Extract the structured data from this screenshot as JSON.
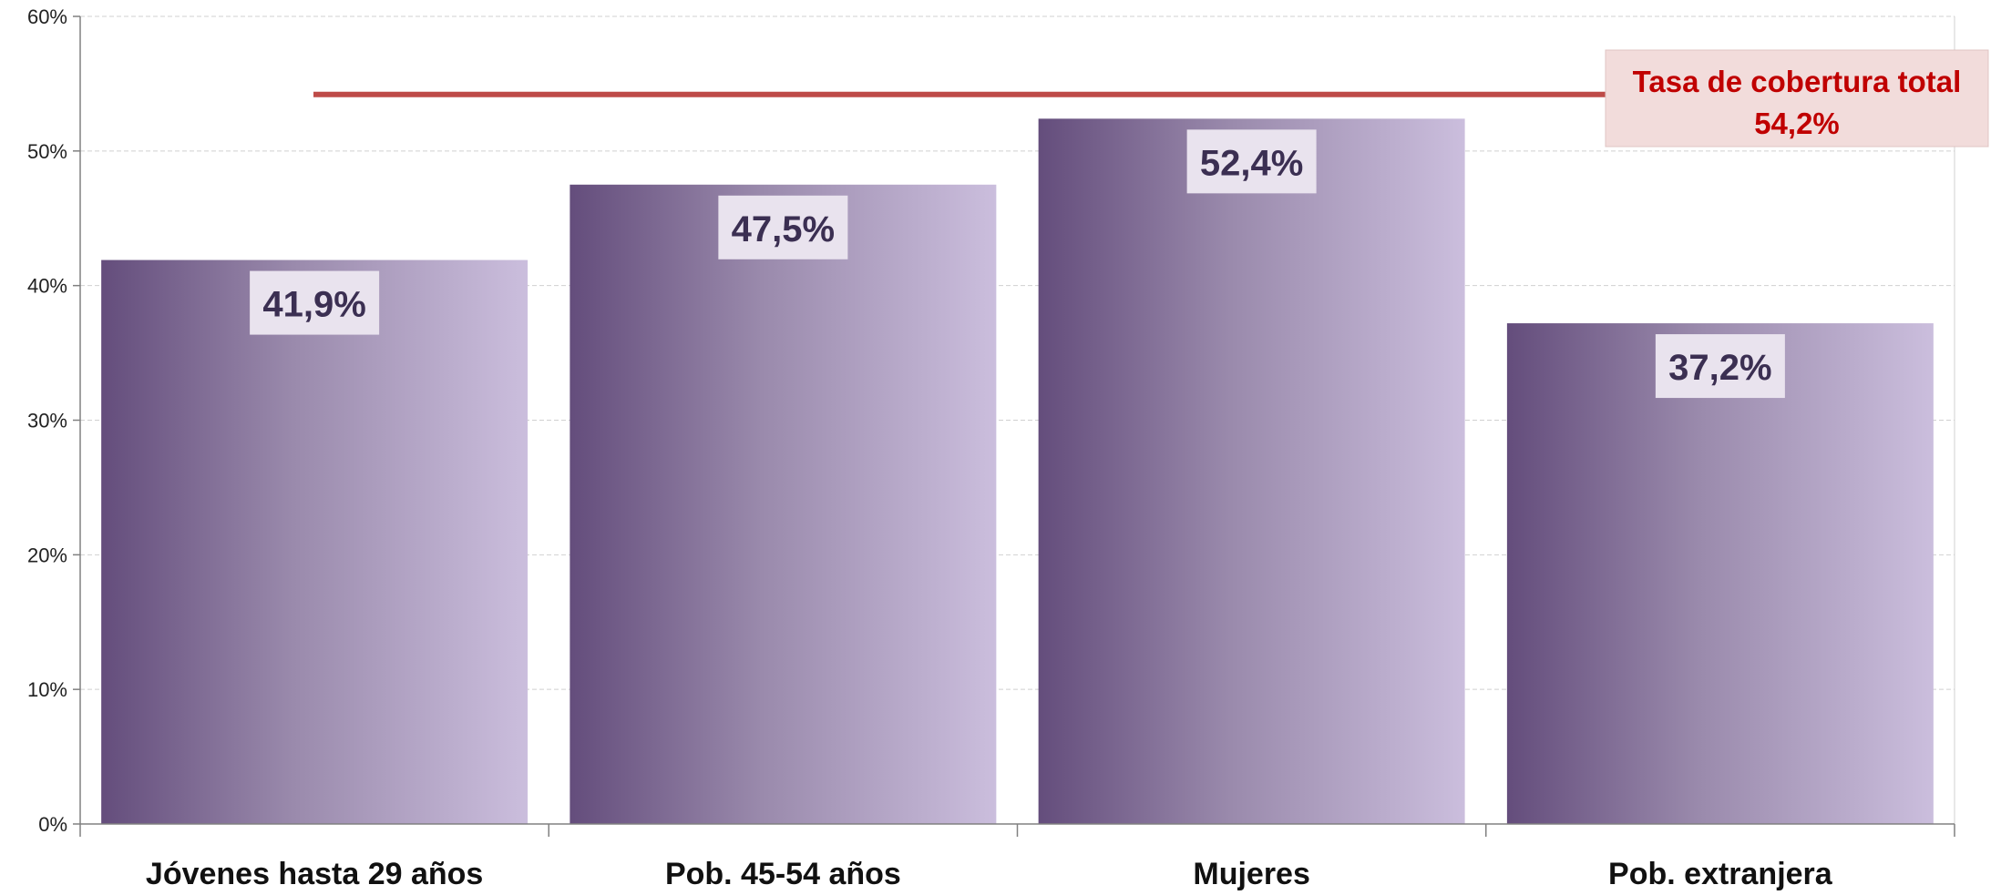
{
  "chart_data": {
    "type": "bar",
    "categories": [
      "Jóvenes hasta 29 años",
      "Pob. 45-54 años",
      "Mujeres",
      "Pob. extranjera"
    ],
    "values": [
      41.9,
      47.5,
      52.4,
      37.2
    ],
    "value_labels": [
      "41,9%",
      "47,5%",
      "52,4%",
      "37,2%"
    ],
    "ylim": [
      0,
      60
    ],
    "yticks": [
      0,
      10,
      20,
      30,
      40,
      50,
      60
    ],
    "ytick_labels": [
      "0%",
      "10%",
      "20%",
      "30%",
      "40%",
      "50%",
      "60%"
    ],
    "grid": true,
    "reference_line": {
      "value": 54.2,
      "label_line1": "Tasa de cobertura  total",
      "label_line2": "54,2%"
    },
    "title": "",
    "xlabel": "",
    "ylabel": ""
  },
  "colors": {
    "bar_dark": "#644d7c",
    "bar_mid": "#9a8aac",
    "bar_light": "#cbbedd",
    "reference_line": "#be4b48",
    "reference_label_text": "#c00000",
    "reference_label_bg": "#f2dcdb",
    "data_label_bg": "#e9e3ee",
    "data_label_text": "#3b2f52",
    "gridline": "#d0d0d0",
    "axis": "#808080"
  }
}
